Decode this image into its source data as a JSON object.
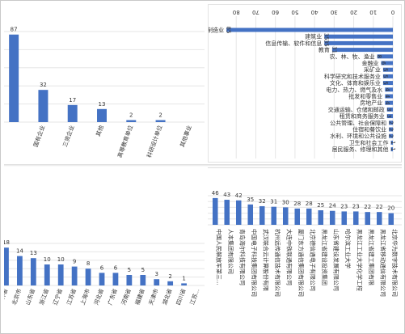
{
  "chart_data": [
    {
      "id": "tl",
      "type": "bar",
      "orientation": "vertical",
      "categories": [
        "",
        "国有企业",
        "三资企业",
        "其他",
        "高等教育单位",
        "科研设计单位",
        "其他事业"
      ],
      "values": [
        87,
        32,
        17,
        13,
        2,
        2,
        null
      ],
      "value_labels": [
        "87",
        "32",
        "17",
        "13",
        "2",
        "2",
        ""
      ],
      "ylim": [
        0,
        90
      ],
      "grid": true
    },
    {
      "id": "tr",
      "type": "bar",
      "orientation": "horizontal",
      "categories": [
        "制造业",
        "建筑业",
        "信息传输、软件和信息",
        "教育",
        "农、林、牧、渔业",
        "金融业",
        "采矿业",
        "科学研究和技术服务业",
        "文化、体育和娱乐业",
        "电力、热力、燃气及水",
        "批发和零售业",
        "房地产业",
        "交通运输、仓储和邮政",
        "租赁和商务服务业",
        "公共管理、社会保障和",
        "住宿和餐饮业",
        "水利、环境和公共设施",
        "卫生和社会工作",
        "居民服务、修理和其他"
      ],
      "values": [
        85,
        35,
        35,
        31,
        8,
        6,
        5,
        5,
        5,
        4,
        4,
        4,
        3,
        3,
        2,
        2,
        2,
        1,
        1
      ],
      "value_labels": [
        "85",
        "35",
        "35",
        "31",
        "8",
        "6",
        "5",
        "5",
        "5",
        "4",
        "4",
        "4",
        "3",
        "3",
        "2",
        "2",
        "2",
        "1",
        "1"
      ],
      "top_tick_labels": [
        "0",
        "10",
        "20",
        "30",
        "40",
        "50",
        "60",
        "70",
        "80"
      ],
      "xlim": [
        0,
        90
      ],
      "grid": true
    },
    {
      "id": "bl",
      "type": "bar",
      "orientation": "vertical",
      "categories": [
        "...林省",
        "北京市",
        "山东省",
        "浙江省",
        "辽宁省",
        "江苏省",
        "上海市",
        "河北省",
        "广东省",
        "河南省",
        "福建省",
        "天津市",
        "湖北省",
        "四川省",
        "江苏..."
      ],
      "values": [
        18,
        14,
        13,
        10,
        10,
        9,
        8,
        6,
        6,
        5,
        5,
        3,
        2,
        1,
        null
      ],
      "value_labels": [
        "18",
        "14",
        "13",
        "10",
        "10",
        "9",
        "8",
        "6",
        "6",
        "5",
        "5",
        "3",
        "2",
        "1",
        ""
      ],
      "ylim": [
        0,
        20
      ],
      "grid": true
    },
    {
      "id": "br",
      "type": "bar",
      "orientation": "vertical",
      "categories": [
        "中国人民解放军第三...",
        "人本集团有限公司",
        "青岛海尔科技有限公司",
        "中国电子科技集团有限公司",
        "武汉联合云计算股份有限",
        "杭州远传通信技术有限公司",
        "大连中铁联通有限公司",
        "厦门东方通信集团有限公司",
        "北京德信通电子有限公司",
        "黑龙江省建设投资集团",
        "山东省建设发展有限公司",
        "哈尔滨工业大学",
        "黑龙江工业大学化学工程",
        "黑龙江省建工集团有限",
        "黑龙江省移动通信有限公司",
        "北京华为数字技术有限公司"
      ],
      "values": [
        46,
        43,
        42,
        35,
        32,
        31,
        30,
        28,
        28,
        25,
        24,
        23,
        23,
        22,
        22,
        20
      ],
      "value_labels": [
        "46",
        "43",
        "42",
        "35",
        "32",
        "31",
        "30",
        "28",
        "28",
        "25",
        "24",
        "23",
        "23",
        "22",
        "22",
        "20"
      ],
      "ylim": [
        0,
        50
      ],
      "grid": true
    }
  ]
}
